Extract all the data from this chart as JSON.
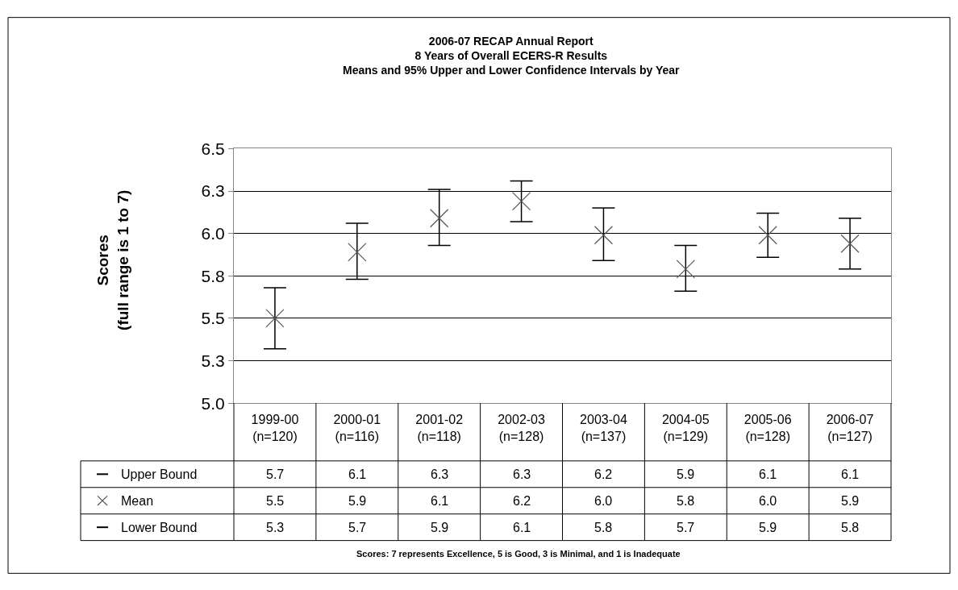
{
  "chart_data": {
    "type": "scatter",
    "title": "2006-07 RECAP Annual Report\n8 Years of Overall ECERS-R Results\nMeans and 95% Upper and Lower Confidence Intervals by Year",
    "ylabel": "Scores\n(full range is 1 to 7)",
    "categories": [
      "1999-00\n(n=120)",
      "2000-01\n(n=116)",
      "2001-02\n(n=118)",
      "2002-03\n(n=128)",
      "2003-04\n(n=137)",
      "2004-05\n(n=129)",
      "2005-06\n(n=128)",
      "2006-07\n(n=127)"
    ],
    "series": [
      {
        "name": "Mean",
        "color": "#555555",
        "marker": "cross",
        "values": [
          5.5,
          5.89,
          6.09,
          6.19,
          5.99,
          5.79,
          5.99,
          5.94
        ],
        "value_labels": [
          "5.5",
          "5.9",
          "6.1",
          "6.2",
          "6.0",
          "5.8",
          "6.0",
          "5.9"
        ],
        "errors": [
          [
            5.32,
            5.68
          ],
          [
            5.73,
            6.06
          ],
          [
            5.93,
            6.26
          ],
          [
            6.07,
            6.31
          ],
          [
            5.84,
            6.15
          ],
          [
            5.66,
            5.93
          ],
          [
            5.86,
            6.12
          ],
          [
            5.79,
            6.09
          ]
        ]
      }
    ],
    "ylim": [
      5.0,
      6.5
    ],
    "yticks": [
      {
        "value": 5.0,
        "label": "5.0"
      },
      {
        "value": 5.25,
        "label": "5.3"
      },
      {
        "value": 5.5,
        "label": "5.5"
      },
      {
        "value": 5.75,
        "label": "5.8"
      },
      {
        "value": 6.0,
        "label": "6.0"
      },
      {
        "value": 6.25,
        "label": "6.3"
      },
      {
        "value": 6.5,
        "label": "6.5"
      }
    ],
    "grid": "y",
    "annotations": [
      "Scores: 7 represents Excellence, 5 is Good, 3 is Minimal, and 1 is Inadequate",
      "Upper Bound",
      "5.7",
      "6.1",
      "6.3",
      "6.3",
      "6.2",
      "5.9",
      "6.1",
      "6.1",
      "Lower Bound",
      "5.3",
      "5.7",
      "5.9",
      "6.1",
      "5.8",
      "5.7",
      "5.9",
      "5.8"
    ]
  }
}
